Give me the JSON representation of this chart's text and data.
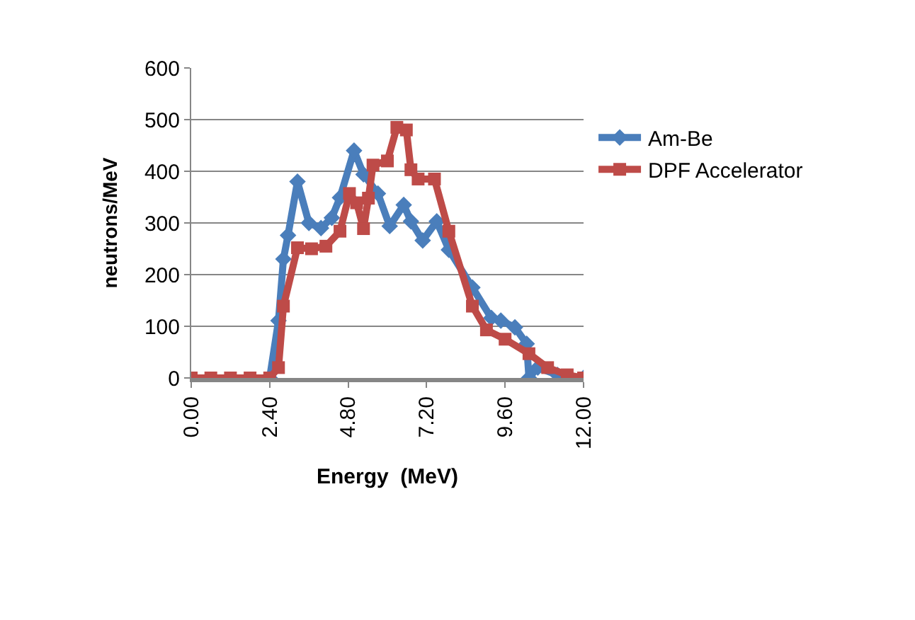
{
  "chart_data": {
    "type": "line",
    "xlabel": "Energy  (MeV)",
    "ylabel": "neutrons/MeV",
    "xlim": [
      0,
      12
    ],
    "xticks": [
      {
        "value": 0,
        "label": "0.00"
      },
      {
        "value": 2.4,
        "label": "2.40"
      },
      {
        "value": 4.8,
        "label": "4.80"
      },
      {
        "value": 7.2,
        "label": "7.20"
      },
      {
        "value": 9.6,
        "label": "9.60"
      },
      {
        "value": 12,
        "label": "12.00"
      }
    ],
    "ylim": [
      0,
      600
    ],
    "yticks": [
      0,
      100,
      200,
      300,
      400,
      500,
      600
    ],
    "grid": "y",
    "legend": "right",
    "line_style": "solid",
    "series": [
      {
        "name": "Am-Be",
        "color": "#4a7ebb",
        "marker": "diamond",
        "x": [
          2.4,
          2.67,
          2.82,
          2.96,
          3.25,
          3.6,
          3.97,
          4.3,
          4.55,
          4.98,
          5.27,
          5.71,
          6.07,
          6.5,
          6.72,
          7.08,
          7.51,
          7.88,
          8.6,
          9.18,
          9.47,
          9.9,
          10.26,
          10.33,
          10.6,
          11.2,
          12
        ],
        "values": [
          0,
          111,
          230,
          276,
          380,
          300,
          290,
          310,
          349,
          440,
          394,
          357,
          294,
          335,
          303,
          266,
          303,
          248,
          175,
          116,
          111,
          98,
          66,
          0,
          20,
          6,
          0
        ]
      },
      {
        "name": "DPF Accelerator",
        "color": "#be4b48",
        "marker": "square",
        "x": [
          0,
          0.6,
          1.2,
          1.8,
          2.4,
          2.67,
          2.82,
          3.25,
          3.68,
          4.12,
          4.55,
          4.84,
          5.06,
          5.27,
          5.42,
          5.56,
          6.0,
          6.29,
          6.58,
          6.72,
          6.94,
          7.44,
          7.88,
          8.6,
          9.03,
          9.6,
          10.33,
          10.9,
          11.5,
          12
        ],
        "values": [
          0,
          0,
          0,
          0,
          0,
          20,
          139,
          252,
          250,
          255,
          284,
          357,
          339,
          289,
          348,
          412,
          420,
          485,
          480,
          403,
          385,
          385,
          284,
          139,
          93,
          75,
          47,
          20,
          6,
          0
        ]
      }
    ]
  }
}
